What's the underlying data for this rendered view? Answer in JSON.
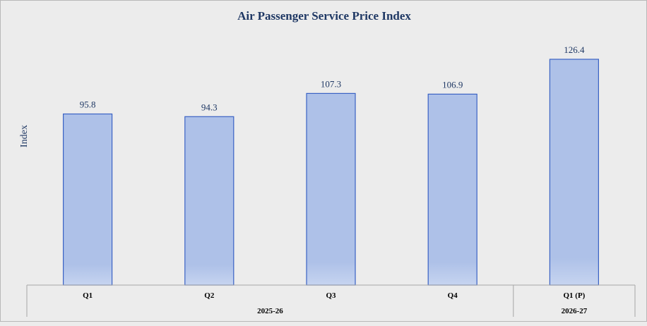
{
  "chart_data": {
    "type": "bar",
    "title": "Air Passenger Service Price Index",
    "ylabel": "Index",
    "categories": [
      "Q1",
      "Q2",
      "Q3",
      "Q4",
      "Q1 (P)"
    ],
    "values": [
      95.8,
      94.3,
      107.3,
      106.9,
      126.4
    ],
    "data_labels": [
      "95.8",
      "94.3",
      "107.3",
      "106.9",
      "126.4"
    ],
    "groups": [
      {
        "label": "2025-26",
        "categories": [
          "Q1",
          "Q2",
          "Q3",
          "Q4"
        ]
      },
      {
        "label": "2026-27",
        "categories": [
          "Q1 (P)"
        ]
      }
    ],
    "ylim": [
      0,
      126.4
    ],
    "grid": false,
    "legend": "none",
    "colors": {
      "bar_fill": "#aec1e8",
      "bar_fill_bottom": "#c6d4f0",
      "bar_stroke": "#3a62c4",
      "text": "#1f3864",
      "axis_text": "#000000",
      "axis_line": "#a6a6a6"
    }
  }
}
